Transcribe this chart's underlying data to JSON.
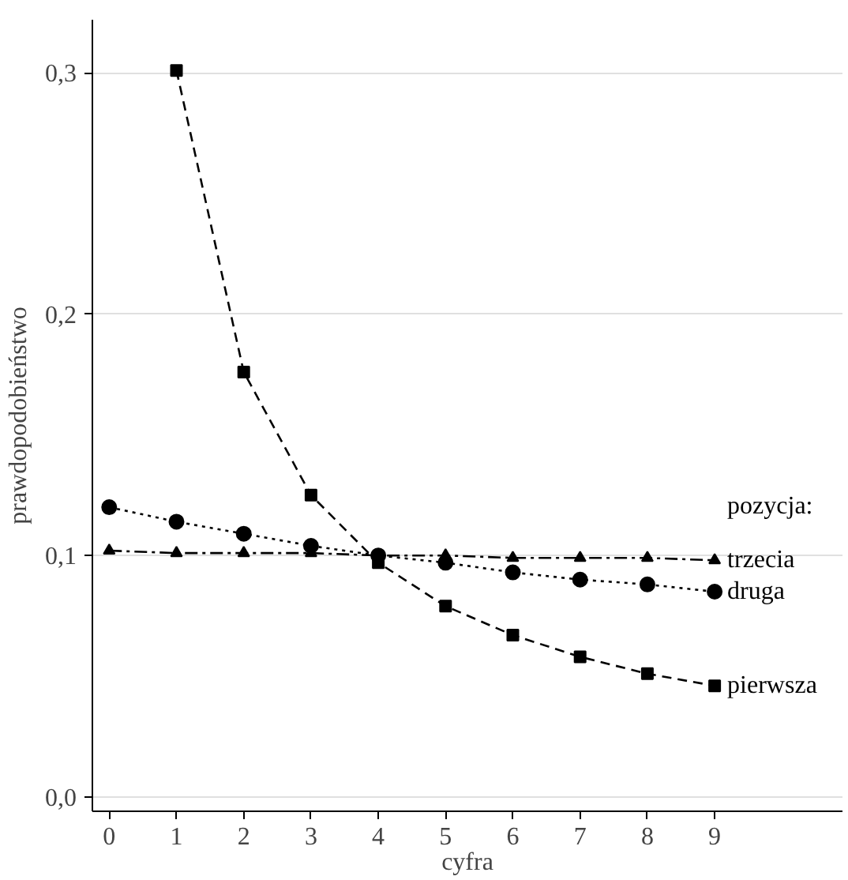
{
  "chart_data": {
    "type": "line",
    "xlabel": "cyfra",
    "ylabel": "prawdopodobieństwo",
    "legend_title": "pozycja:",
    "x": [
      0,
      1,
      2,
      3,
      4,
      5,
      6,
      7,
      8,
      9
    ],
    "series": [
      {
        "name": "pierwsza",
        "color": "#000000",
        "marker": "square",
        "line_style": "dashed",
        "values": [
          null,
          0.301,
          0.176,
          0.125,
          0.097,
          0.079,
          0.067,
          0.058,
          0.051,
          0.046
        ]
      },
      {
        "name": "druga",
        "color": "#000000",
        "marker": "circle",
        "line_style": "dotted",
        "values": [
          0.12,
          0.114,
          0.109,
          0.104,
          0.1,
          0.097,
          0.093,
          0.09,
          0.088,
          0.085
        ]
      },
      {
        "name": "trzecia",
        "color": "#000000",
        "marker": "triangle",
        "line_style": "dashdot",
        "values": [
          0.102,
          0.101,
          0.101,
          0.101,
          0.1,
          0.1,
          0.099,
          0.099,
          0.099,
          0.098
        ]
      }
    ],
    "xlim": [
      -0.25,
      10.9
    ],
    "ylim": [
      -0.006,
      0.322
    ],
    "xticks": [
      0,
      1,
      2,
      3,
      4,
      5,
      6,
      7,
      8,
      9
    ],
    "yticks": [
      {
        "value": 0.0,
        "label": "0,0"
      },
      {
        "value": 0.1,
        "label": "0,1"
      },
      {
        "value": 0.2,
        "label": "0,2"
      },
      {
        "value": 0.3,
        "label": "0,3"
      }
    ],
    "grid": "y"
  }
}
